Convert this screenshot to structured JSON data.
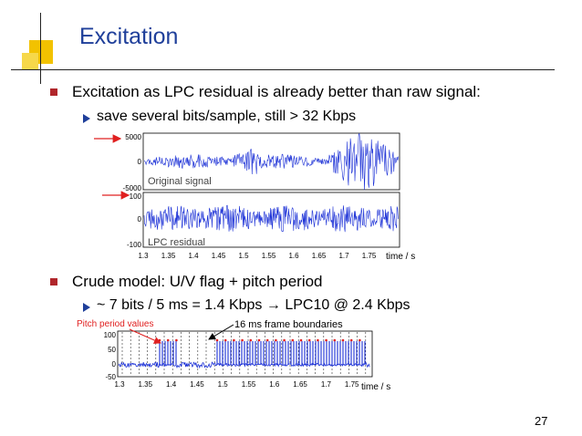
{
  "slide": {
    "title": "Excitation",
    "page_number": "27",
    "bullet1": "Excitation as LPC residual is already better than raw signal:",
    "sub1": "save several bits/sample, still > 32 Kbps",
    "bullet2": "Crude model: U/V flag + pitch period",
    "sub2": "~ 7 bits / 5 ms = 1.4 Kbps → LPC10 @ 2.4 Kbps"
  },
  "figure1": {
    "top_panel": {
      "label": "Original signal",
      "yticks": [
        "5000",
        "0",
        "-5000"
      ]
    },
    "bottom_panel": {
      "label": "LPC residual",
      "yticks": [
        "100",
        "0",
        "-100"
      ]
    },
    "xticks": [
      "1.3",
      "1.35",
      "1.4",
      "1.45",
      "1.5",
      "1.55",
      "1.6",
      "1.65",
      "1.7",
      "1.75"
    ],
    "xlabel": "time / s"
  },
  "figure2": {
    "annotation_pitch": "Pitch period values",
    "annotation_frames": "16 ms frame boundaries",
    "yticks": [
      "100",
      "50",
      "0",
      "-50"
    ],
    "xticks": [
      "1.3",
      "1.35",
      "1.4",
      "1.45",
      "1.5",
      "1.55",
      "1.6",
      "1.65",
      "1.7",
      "1.75"
    ],
    "xlabel": "time / s"
  },
  "colors": {
    "title": "#1f3f9a",
    "bullet": "#b0262b",
    "signal": "#1a2fd6",
    "annotation_red": "#e02020",
    "deco_yellow": "#f2c200"
  }
}
